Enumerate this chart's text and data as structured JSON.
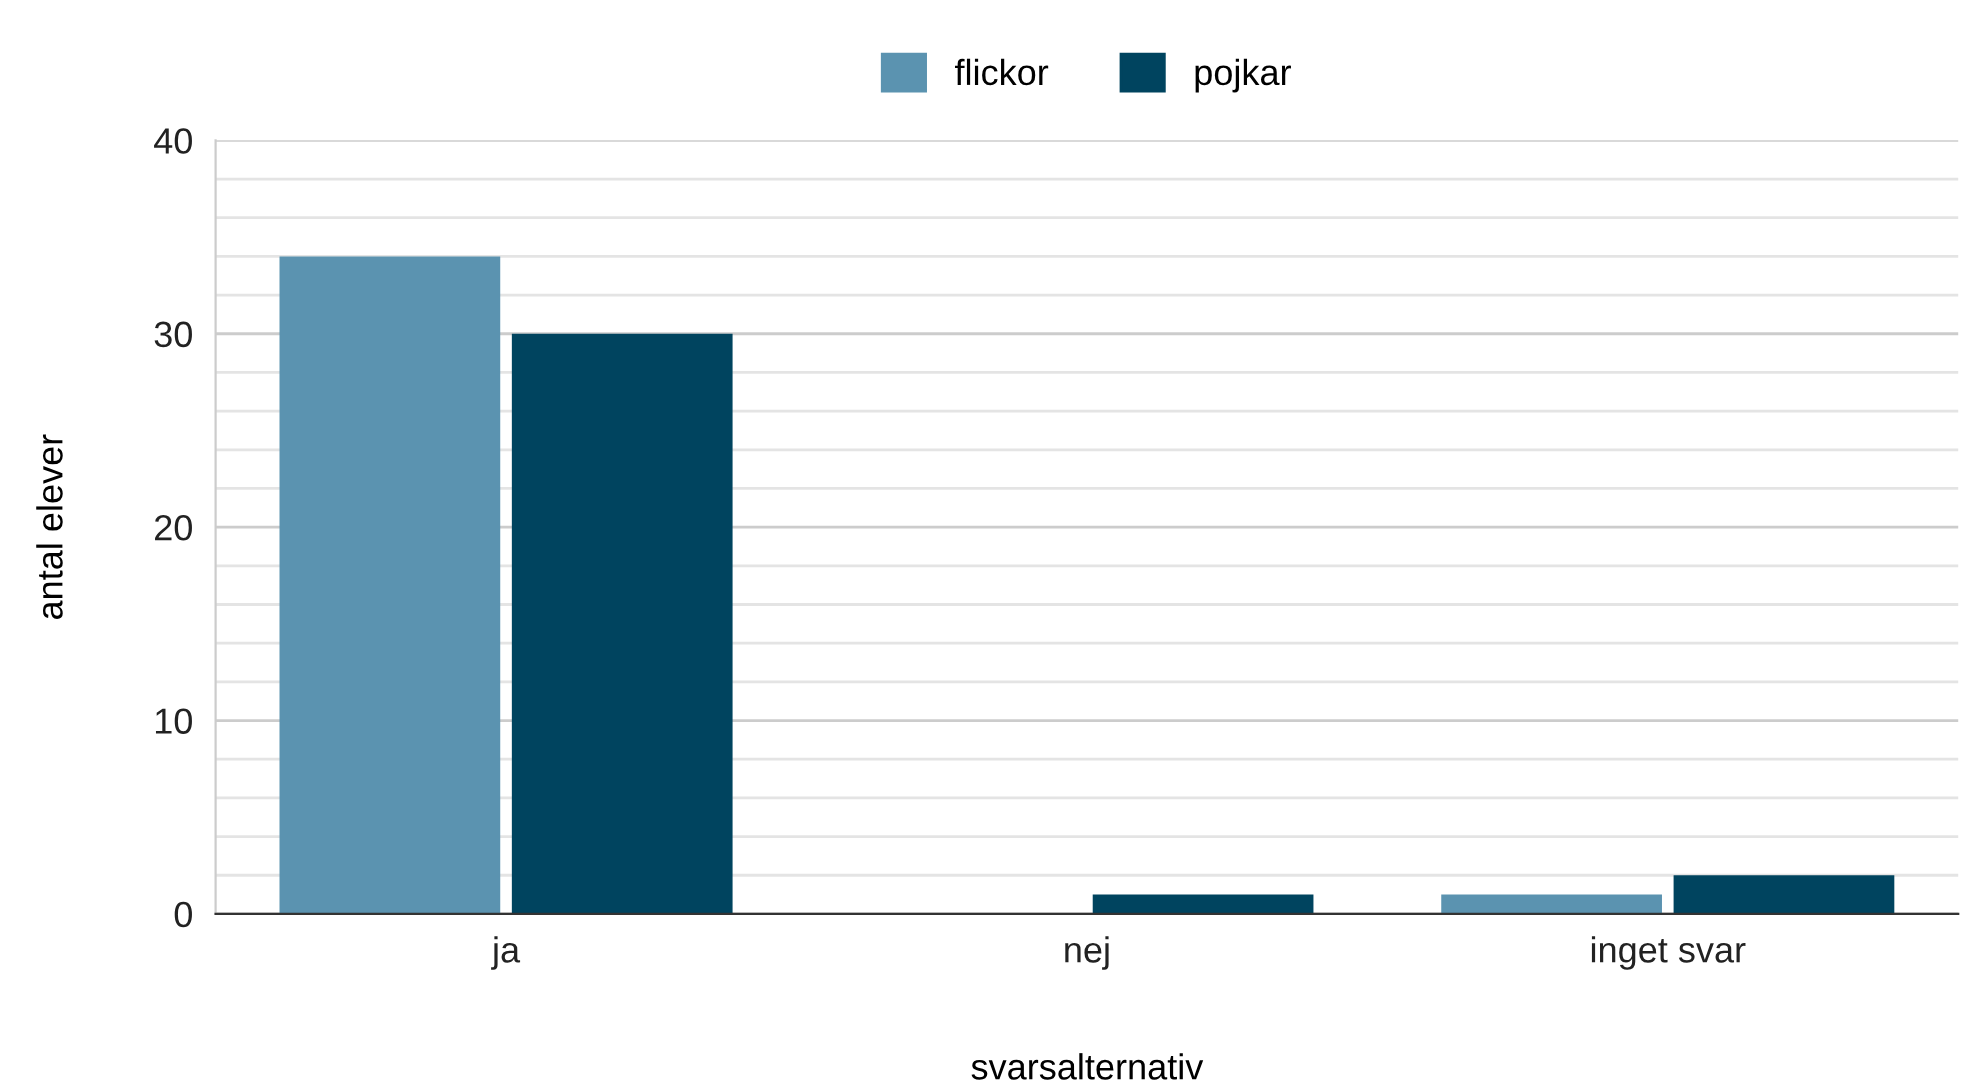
{
  "chart_data": {
    "type": "bar",
    "xlabel": "svarsalternativ",
    "ylabel": "antal elever",
    "categories": [
      "ja",
      "nej",
      "inget svar"
    ],
    "series": [
      {
        "name": "flickor",
        "color": "#5b93b0",
        "values": [
          34,
          0,
          1
        ]
      },
      {
        "name": "pojkar",
        "color": "#00445f",
        "values": [
          30,
          1,
          2
        ]
      }
    ],
    "ylim": [
      0,
      40
    ],
    "yticks": [
      0,
      {
        "value": 2,
        "label": null
      },
      {
        "value": 4,
        "label": null
      },
      {
        "value": 6,
        "label": null
      },
      {
        "value": 8,
        "label": null
      },
      10,
      {
        "value": 12,
        "label": null
      },
      {
        "value": 14,
        "label": null
      },
      {
        "value": 16,
        "label": null
      },
      {
        "value": 18,
        "label": null
      },
      20,
      {
        "value": 22,
        "label": null
      },
      {
        "value": 24,
        "label": null
      },
      {
        "value": 26,
        "label": null
      },
      {
        "value": 28,
        "label": null
      },
      30,
      {
        "value": 32,
        "label": null
      },
      {
        "value": 34,
        "label": null
      },
      {
        "value": 36,
        "label": null
      },
      {
        "value": 38,
        "label": null
      },
      40
    ],
    "grid": "y",
    "legend": "top"
  }
}
